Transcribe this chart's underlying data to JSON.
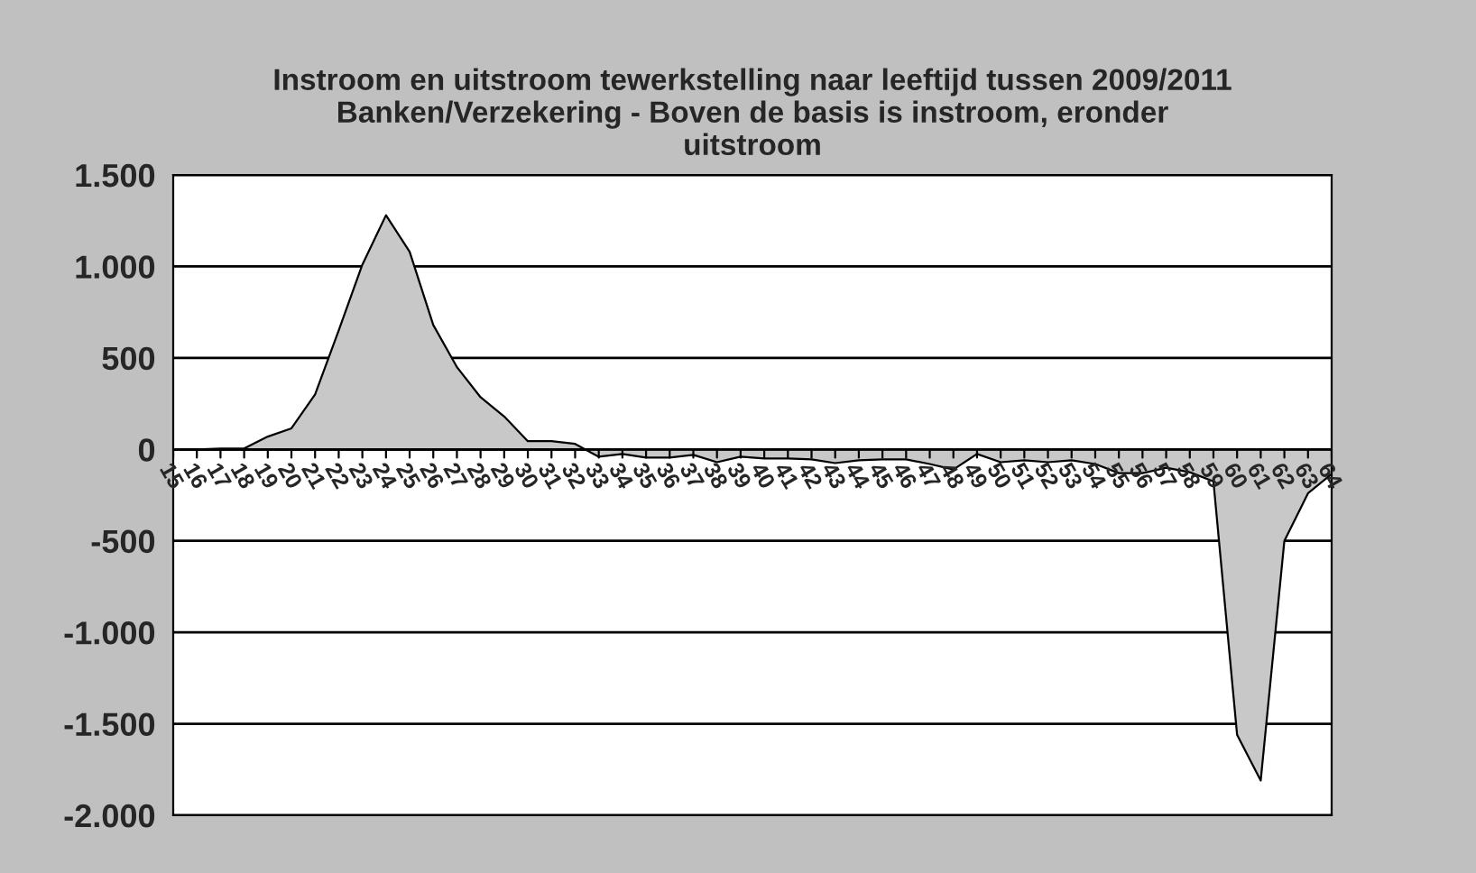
{
  "chart_data": {
    "type": "area",
    "title": "Instroom en uitstroom tewerkstelling naar leeftijd tussen 2009/2011\nBanken/Verzekering - Boven de basis is instroom, eronder\nuitstroom",
    "categories": [
      "15",
      "16",
      "17",
      "18",
      "19",
      "20",
      "21",
      "22",
      "23",
      "24",
      "25",
      "26",
      "27",
      "28",
      "29",
      "30",
      "31",
      "32",
      "33",
      "34",
      "35",
      "36",
      "37",
      "38",
      "39",
      "40",
      "41",
      "42",
      "43",
      "44",
      "45",
      "46",
      "47",
      "48",
      "49",
      "50",
      "51",
      "52",
      "53",
      "54",
      "55",
      "56",
      "57",
      "58",
      "59",
      "60",
      "61",
      "62",
      "63",
      "64"
    ],
    "series": [
      {
        "color": "#c8c8c8",
        "values": [
          0,
          0,
          5,
          5,
          70,
          115,
          300,
          650,
          1010,
          1280,
          1080,
          680,
          450,
          285,
          180,
          45,
          45,
          30,
          -40,
          -25,
          -45,
          -45,
          -30,
          -70,
          -40,
          -50,
          -50,
          -55,
          -75,
          -60,
          -55,
          -55,
          -80,
          -110,
          -25,
          -70,
          -60,
          -70,
          -60,
          -80,
          -130,
          -130,
          -100,
          -125,
          -175,
          -1560,
          -1810,
          -500,
          -240,
          -135
        ]
      }
    ],
    "ylim": [
      -2000,
      1500
    ],
    "yticks": [
      {
        "value": -2000,
        "label": "-2.000"
      },
      {
        "value": -1500,
        "label": "-1.500"
      },
      {
        "value": -1000,
        "label": "-1.000"
      },
      {
        "value": -500,
        "label": "-500"
      },
      {
        "value": 0,
        "label": "0"
      },
      {
        "value": 500,
        "label": "500"
      },
      {
        "value": 1000,
        "label": "1.000"
      },
      {
        "value": 1500,
        "label": "1.500"
      }
    ],
    "grid": "y",
    "legend": false
  }
}
